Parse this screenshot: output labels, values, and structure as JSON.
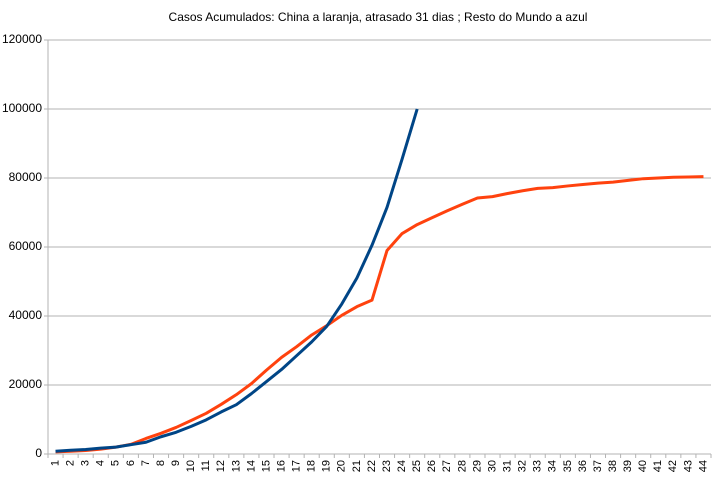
{
  "chart_data": {
    "type": "line",
    "title": "Casos Acumulados: China a laranja, atrasado 31 dias ; Resto do Mundo a azul",
    "categories": [
      "1",
      "2",
      "3",
      "4",
      "5",
      "6",
      "7",
      "8",
      "9",
      "10",
      "11",
      "12",
      "13",
      "14",
      "15",
      "16",
      "17",
      "18",
      "19",
      "20",
      "21",
      "22",
      "23",
      "24",
      "25",
      "26",
      "27",
      "28",
      "29",
      "30",
      "31",
      "32",
      "33",
      "34",
      "35",
      "36",
      "37",
      "38",
      "39",
      "40",
      "41",
      "42",
      "43",
      "44"
    ],
    "series": [
      {
        "color": "#ff420e",
        "values": [
          600,
          800,
          1000,
          1400,
          2000,
          2800,
          4500,
          6000,
          7700,
          9700,
          11800,
          14400,
          17200,
          20400,
          24300,
          28000,
          31100,
          34500,
          37200,
          40200,
          42700,
          44600,
          59000,
          63900,
          66500,
          68500,
          70500,
          72400,
          74200,
          74600,
          75500,
          76300,
          77000,
          77200,
          77700,
          78100,
          78500,
          78800,
          79300,
          79800,
          80000,
          80200,
          80300,
          80400
        ]
      },
      {
        "color": "#004586",
        "values": [
          800,
          1100,
          1300,
          1700,
          2000,
          2700,
          3400,
          5000,
          6300,
          8000,
          9900,
          12200,
          14300,
          17500,
          21000,
          24500,
          28500,
          32500,
          37000,
          43500,
          51000,
          60500,
          71500,
          85500,
          100000,
          null,
          null,
          null,
          null,
          null,
          null,
          null,
          null,
          null,
          null,
          null,
          null,
          null,
          null,
          null,
          null,
          null,
          null,
          null
        ]
      }
    ],
    "ylim": [
      0,
      120000
    ],
    "yticks": [
      0,
      20000,
      40000,
      60000,
      80000,
      100000,
      120000
    ],
    "grid": true
  }
}
